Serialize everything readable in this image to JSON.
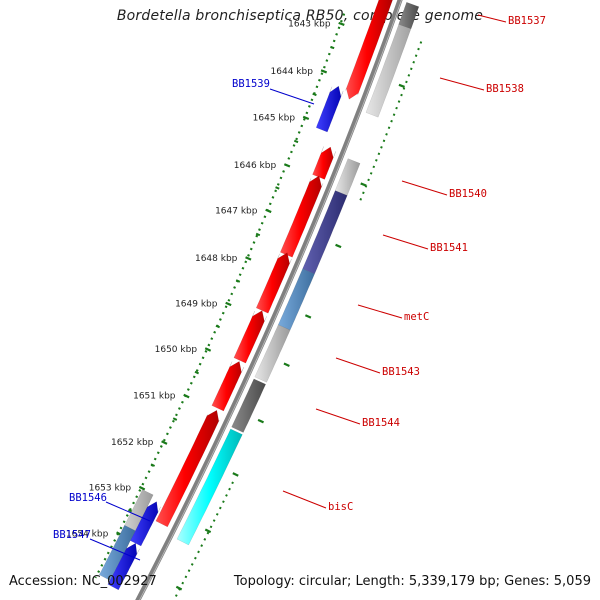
{
  "title": "Bordetella bronchiseptica RB50, complete genome",
  "footer": {
    "accession": "Accession: NC_002927",
    "topology": "Topology: circular; Length: 5,339,179 bp; Genes: 5,059"
  },
  "colors": {
    "backbone": "#808080",
    "forward_label": "#0000cc",
    "reverse_label": "#cc0000",
    "ruler": "#1a7a1a"
  },
  "ruler_ticks": [
    "1643 kbp",
    "1644 kbp",
    "1645 kbp",
    "1646 kbp",
    "1647 kbp",
    "1648 kbp",
    "1649 kbp",
    "1650 kbp",
    "1651 kbp",
    "1652 kbp",
    "1653 kbp",
    "1654 kbp"
  ],
  "gene_labels": [
    {
      "id": "BB1537",
      "strand": "reverse"
    },
    {
      "id": "BB1538",
      "strand": "reverse"
    },
    {
      "id": "BB1539",
      "strand": "forward"
    },
    {
      "id": "BB1540",
      "strand": "reverse"
    },
    {
      "id": "BB1541",
      "strand": "reverse"
    },
    {
      "id": "metC",
      "strand": "reverse"
    },
    {
      "id": "BB1543",
      "strand": "reverse"
    },
    {
      "id": "BB1544",
      "strand": "reverse"
    },
    {
      "id": "bisC",
      "strand": "reverse"
    },
    {
      "id": "BB1546",
      "strand": "forward"
    },
    {
      "id": "BB1547",
      "strand": "forward"
    }
  ]
}
